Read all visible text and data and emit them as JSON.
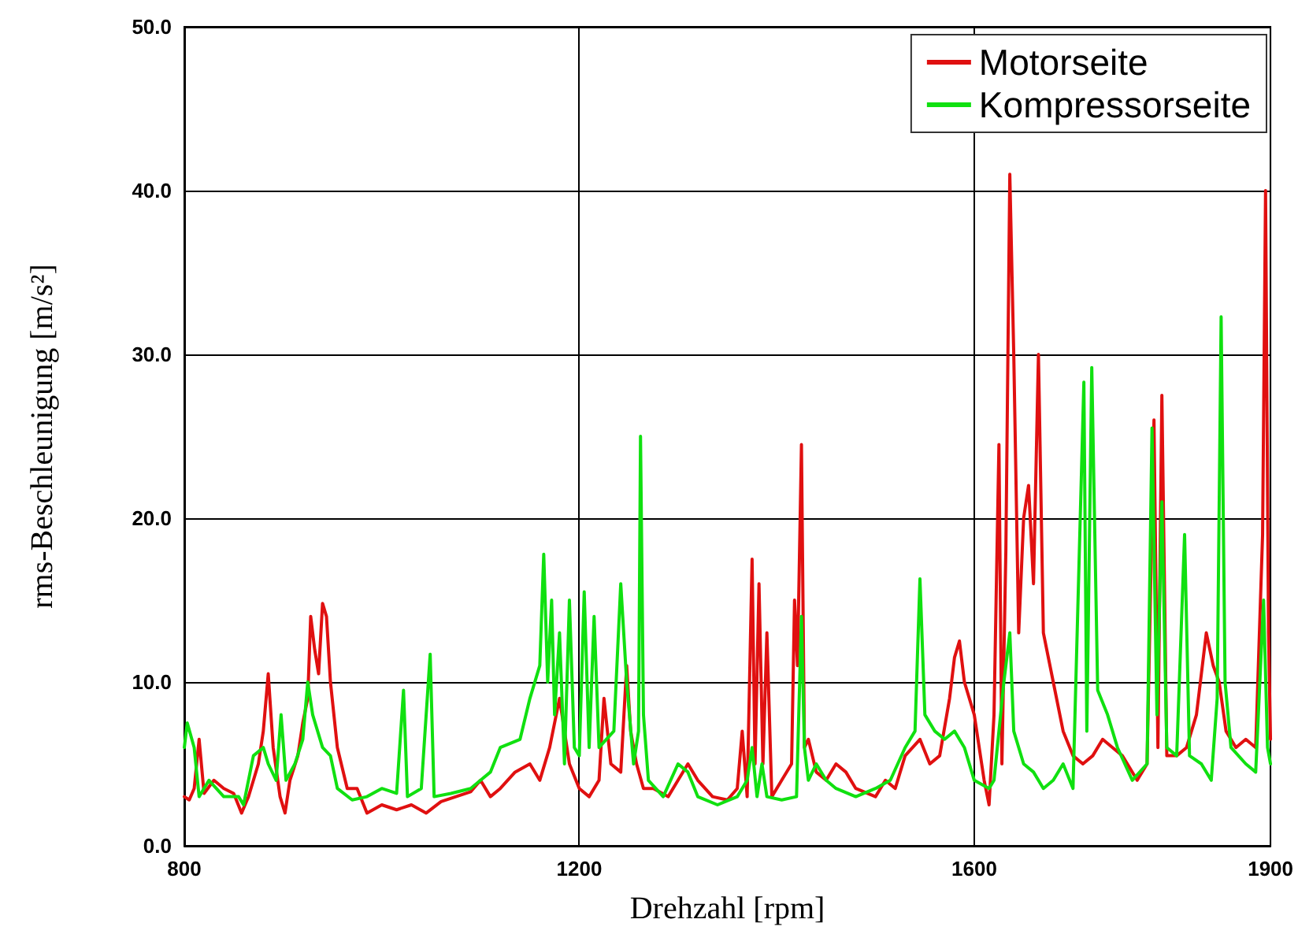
{
  "chart_data": {
    "type": "line",
    "xlabel": "Drehzahl [rpm]",
    "ylabel": "rms-Beschleunigung [m/s²]",
    "xlim": [
      800,
      1900
    ],
    "xticks": [
      800,
      1200,
      1600,
      1900
    ],
    "ylim": [
      0,
      50
    ],
    "yticks": [
      {
        "value": 0,
        "label": "0.0"
      },
      {
        "value": 10,
        "label": "10.0"
      },
      {
        "value": 20,
        "label": "20.0"
      },
      {
        "value": 30,
        "label": "30.0"
      },
      {
        "value": 40,
        "label": "40.0"
      },
      {
        "value": 50,
        "label": "50.0"
      }
    ],
    "grid": true,
    "legend": "top right",
    "marker": "none",
    "line_style": "solid",
    "series": [
      {
        "name": "Motorseite",
        "color": "#e01010",
        "x": [
          800,
          805,
          810,
          815,
          820,
          830,
          840,
          850,
          858,
          865,
          875,
          880,
          885,
          890,
          897,
          902,
          907,
          915,
          920,
          925,
          928,
          932,
          936,
          940,
          944,
          948,
          955,
          965,
          975,
          985,
          1000,
          1015,
          1030,
          1045,
          1060,
          1075,
          1090,
          1100,
          1110,
          1120,
          1135,
          1150,
          1160,
          1170,
          1180,
          1190,
          1200,
          1210,
          1220,
          1225,
          1232,
          1242,
          1248,
          1252,
          1258,
          1265,
          1275,
          1290,
          1300,
          1310,
          1320,
          1335,
          1350,
          1360,
          1365,
          1370,
          1375,
          1378,
          1382,
          1386,
          1390,
          1395,
          1405,
          1415,
          1418,
          1421,
          1425,
          1428,
          1432,
          1440,
          1450,
          1460,
          1470,
          1480,
          1500,
          1510,
          1520,
          1530,
          1545,
          1555,
          1565,
          1575,
          1580,
          1585,
          1590,
          1600,
          1610,
          1615,
          1620,
          1625,
          1628,
          1632,
          1636,
          1640,
          1645,
          1650,
          1655,
          1660,
          1665,
          1670,
          1680,
          1690,
          1700,
          1710,
          1720,
          1730,
          1740,
          1750,
          1765,
          1775,
          1782,
          1786,
          1790,
          1795,
          1805,
          1815,
          1825,
          1835,
          1842,
          1848,
          1855,
          1865,
          1875,
          1885,
          1892,
          1895,
          1898,
          1900
        ],
        "values": [
          3.0,
          2.8,
          3.5,
          6.5,
          3.2,
          4.0,
          3.5,
          3.2,
          2.0,
          3.0,
          5.0,
          7.0,
          10.5,
          6.0,
          3.0,
          2.0,
          4.0,
          5.5,
          7.5,
          9.0,
          14.0,
          12.0,
          10.5,
          14.8,
          14.0,
          10.0,
          6.0,
          3.5,
          3.5,
          2.0,
          2.5,
          2.2,
          2.5,
          2.0,
          2.7,
          3.0,
          3.3,
          4.0,
          3.0,
          3.5,
          4.5,
          5.0,
          4.0,
          6.0,
          9.0,
          5.0,
          3.5,
          3.0,
          4.0,
          9.0,
          5.0,
          4.5,
          11.0,
          7.0,
          5.0,
          3.5,
          3.5,
          3.0,
          4.0,
          5.0,
          4.0,
          3.0,
          2.8,
          3.5,
          7.0,
          3.0,
          17.5,
          5.0,
          16.0,
          5.0,
          13.0,
          3.0,
          4.0,
          5.0,
          15.0,
          11.0,
          24.5,
          6.0,
          6.5,
          4.5,
          4.0,
          5.0,
          4.5,
          3.5,
          3.0,
          4.0,
          3.5,
          5.5,
          6.5,
          5.0,
          5.5,
          9.0,
          11.5,
          12.5,
          10.0,
          8.0,
          4.0,
          2.5,
          8.0,
          24.5,
          5.0,
          18.0,
          41.0,
          30.0,
          13.0,
          20.0,
          22.0,
          16.0,
          30.0,
          13.0,
          10.0,
          7.0,
          5.5,
          5.0,
          5.5,
          6.5,
          6.0,
          5.5,
          4.0,
          5.0,
          26.0,
          6.0,
          27.5,
          5.5,
          5.5,
          6.0,
          8.0,
          13.0,
          11.0,
          10.0,
          7.0,
          6.0,
          6.5,
          6.0,
          19.0,
          40.0,
          13.0,
          6.5
        ]
      },
      {
        "name": "Kompressorseite",
        "color": "#10e010",
        "x": [
          800,
          803,
          810,
          815,
          825,
          840,
          855,
          860,
          870,
          880,
          885,
          893,
          898,
          903,
          912,
          920,
          925,
          930,
          940,
          948,
          955,
          970,
          985,
          1000,
          1015,
          1022,
          1026,
          1040,
          1049,
          1053,
          1070,
          1090,
          1100,
          1110,
          1120,
          1140,
          1150,
          1160,
          1164,
          1168,
          1172,
          1175,
          1180,
          1185,
          1190,
          1195,
          1200,
          1205,
          1210,
          1215,
          1220,
          1235,
          1242,
          1248,
          1255,
          1260,
          1262,
          1265,
          1270,
          1285,
          1300,
          1310,
          1320,
          1340,
          1360,
          1370,
          1375,
          1380,
          1385,
          1390,
          1405,
          1420,
          1425,
          1428,
          1432,
          1440,
          1450,
          1460,
          1480,
          1500,
          1515,
          1530,
          1540,
          1545,
          1550,
          1560,
          1570,
          1580,
          1590,
          1600,
          1615,
          1620,
          1630,
          1636,
          1640,
          1650,
          1660,
          1670,
          1680,
          1690,
          1700,
          1711,
          1714,
          1719,
          1725,
          1735,
          1745,
          1760,
          1775,
          1780,
          1785,
          1790,
          1795,
          1805,
          1813,
          1818,
          1830,
          1840,
          1846,
          1850,
          1854,
          1860,
          1875,
          1885,
          1893,
          1897,
          1900
        ],
        "values": [
          6.0,
          7.5,
          6.0,
          3.0,
          4.0,
          3.0,
          3.0,
          2.5,
          5.5,
          6.0,
          5.0,
          4.0,
          8.0,
          4.0,
          5.0,
          6.5,
          10.0,
          8.0,
          6.0,
          5.5,
          3.5,
          2.8,
          3.0,
          3.5,
          3.2,
          9.5,
          3.0,
          3.5,
          11.7,
          3.0,
          3.2,
          3.5,
          4.0,
          4.5,
          6.0,
          6.5,
          9.0,
          11.0,
          17.8,
          10.0,
          15.0,
          8.0,
          13.0,
          5.0,
          15.0,
          6.0,
          5.5,
          15.5,
          6.0,
          14.0,
          6.0,
          7.0,
          16.0,
          10.0,
          5.0,
          7.0,
          25.0,
          8.0,
          4.0,
          3.0,
          5.0,
          4.5,
          3.0,
          2.5,
          3.0,
          4.0,
          6.0,
          3.0,
          5.0,
          3.0,
          2.8,
          3.0,
          14.0,
          6.0,
          4.0,
          5.0,
          4.0,
          3.5,
          3.0,
          3.5,
          4.0,
          6.0,
          7.0,
          16.3,
          8.0,
          7.0,
          6.5,
          7.0,
          6.0,
          4.0,
          3.5,
          4.0,
          10.0,
          13.0,
          7.0,
          5.0,
          4.5,
          3.5,
          4.0,
          5.0,
          3.5,
          28.3,
          7.0,
          29.2,
          9.5,
          8.0,
          6.0,
          4.0,
          5.0,
          25.5,
          8.0,
          21.0,
          6.0,
          5.5,
          19.0,
          5.5,
          5.0,
          4.0,
          9.0,
          32.3,
          10.0,
          6.0,
          5.0,
          4.5,
          15.0,
          6.0,
          5.0
        ]
      }
    ]
  }
}
